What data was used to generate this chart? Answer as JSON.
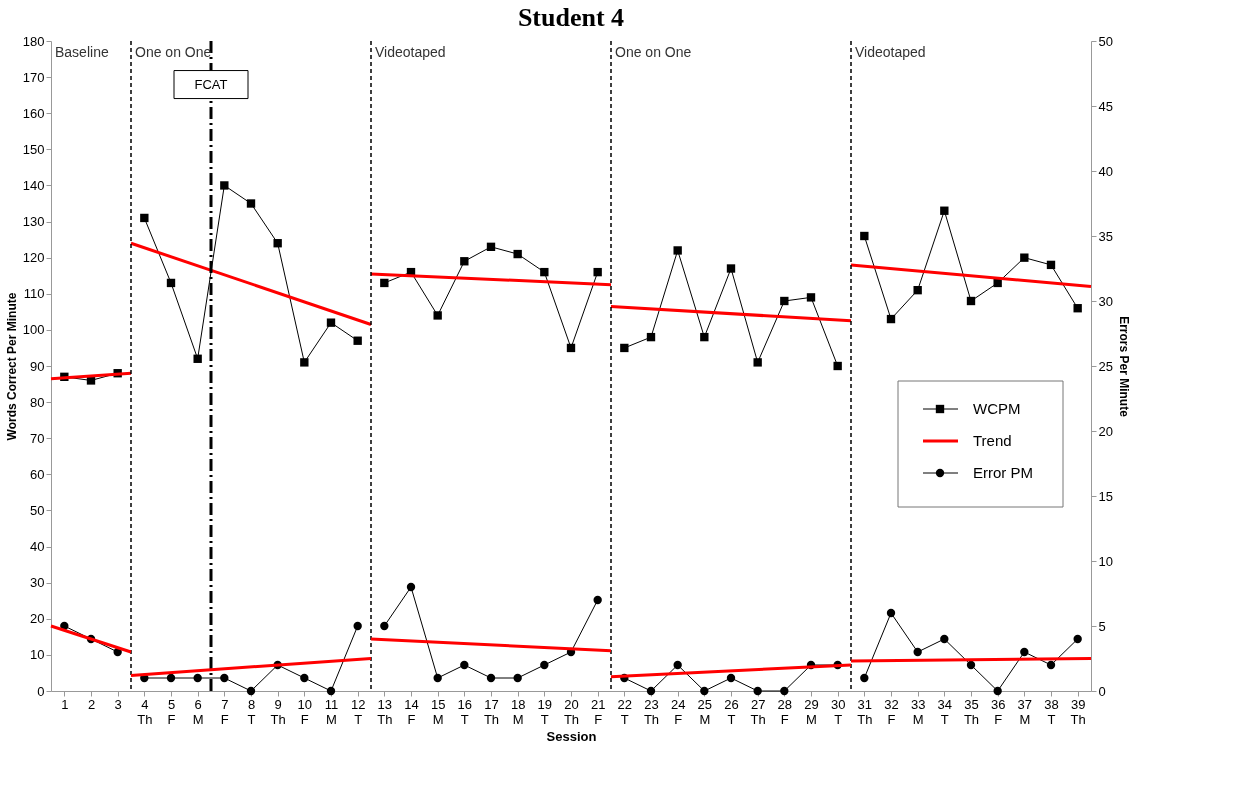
{
  "chart_data": {
    "type": "line",
    "title": "Student 4",
    "xlabel": "Session",
    "ylabel": "Words Correct Per Minute",
    "y2label": "Errors Per Minute",
    "xlim": [
      0.5,
      39.5
    ],
    "xticks": [
      1,
      2,
      3,
      {
        "value": 4,
        "label": "4\nTh"
      },
      {
        "value": 5,
        "label": "5\nF"
      },
      {
        "value": 6,
        "label": "6\nM"
      },
      {
        "value": 7,
        "label": "7\nF"
      },
      {
        "value": 8,
        "label": "8\nT"
      },
      {
        "value": 9,
        "label": "9\nTh"
      },
      {
        "value": 10,
        "label": "10\nF"
      },
      {
        "value": 11,
        "label": "11\nM"
      },
      {
        "value": 12,
        "label": "12\nT"
      },
      {
        "value": 13,
        "label": "13\nTh"
      },
      {
        "value": 14,
        "label": "14\nF"
      },
      {
        "value": 15,
        "label": "15\nM"
      },
      {
        "value": 16,
        "label": "16\nT"
      },
      {
        "value": 17,
        "label": "17\nTh"
      },
      {
        "value": 18,
        "label": "18\nM"
      },
      {
        "value": 19,
        "label": "19\nT"
      },
      {
        "value": 20,
        "label": "20\nTh"
      },
      {
        "value": 21,
        "label": "21\nF"
      },
      {
        "value": 22,
        "label": "22\nT"
      },
      {
        "value": 23,
        "label": "23\nTh"
      },
      {
        "value": 24,
        "label": "24\nF"
      },
      {
        "value": 25,
        "label": "25\nM"
      },
      {
        "value": 26,
        "label": "26\nT"
      },
      {
        "value": 27,
        "label": "27\nTh"
      },
      {
        "value": 28,
        "label": "28\nF"
      },
      {
        "value": 29,
        "label": "29\nM"
      },
      {
        "value": 30,
        "label": "30\nT"
      },
      {
        "value": 31,
        "label": "31\nTh"
      },
      {
        "value": 32,
        "label": "32\nF"
      },
      {
        "value": 33,
        "label": "33\nM"
      },
      {
        "value": 34,
        "label": "34\nT"
      },
      {
        "value": 35,
        "label": "35\nTh"
      },
      {
        "value": 36,
        "label": "36\nF"
      },
      {
        "value": 37,
        "label": "37\nM"
      },
      {
        "value": 38,
        "label": "38\nT"
      },
      {
        "value": 39,
        "label": "39\nTh"
      }
    ],
    "ylim": [
      0,
      180
    ],
    "yticks": [
      0,
      10,
      20,
      30,
      40,
      50,
      60,
      70,
      80,
      90,
      100,
      110,
      120,
      130,
      140,
      150,
      160,
      170,
      180
    ],
    "y2lim": [
      0,
      50
    ],
    "y2ticks": [
      0,
      5,
      10,
      15,
      20,
      25,
      30,
      35,
      40,
      45,
      50
    ],
    "grid": false,
    "legend": "right",
    "line_style": "solid",
    "series": [
      {
        "name": "WCPM",
        "color": "#000000",
        "marker": "square",
        "x": [
          1,
          2,
          3
        ],
        "values": [
          87,
          86,
          88
        ]
      },
      {
        "color": "#000000",
        "marker": "square",
        "x": [
          4,
          5,
          6,
          7,
          8,
          9,
          10,
          11,
          12
        ],
        "values": [
          131,
          113,
          92,
          140,
          135,
          124,
          91,
          102,
          97
        ]
      },
      {
        "color": "#000000",
        "marker": "square",
        "x": [
          13,
          14,
          15,
          16,
          17,
          18,
          19,
          20,
          21
        ],
        "values": [
          113,
          116,
          104,
          119,
          123,
          121,
          116,
          95,
          116
        ]
      },
      {
        "color": "#000000",
        "marker": "square",
        "x": [
          22,
          23,
          24,
          25,
          26,
          27,
          28,
          29,
          30
        ],
        "values": [
          95,
          98,
          122,
          98,
          117,
          91,
          108,
          109,
          90
        ]
      },
      {
        "color": "#000000",
        "marker": "square",
        "x": [
          31,
          32,
          33,
          34,
          35,
          36,
          37,
          38,
          39
        ],
        "values": [
          126,
          103,
          111,
          133,
          108,
          113,
          120,
          118,
          106
        ]
      },
      {
        "name": "Trend",
        "color": "#ff0000",
        "marker": "none",
        "x": [
          0.5,
          3.5
        ],
        "values": [
          86.5,
          88
        ]
      },
      {
        "color": "#ff0000",
        "marker": "none",
        "x": [
          3.5,
          12.5
        ],
        "values": [
          124,
          101.5
        ]
      },
      {
        "color": "#ff0000",
        "marker": "none",
        "x": [
          12.5,
          21.5
        ],
        "values": [
          115.5,
          112.5
        ]
      },
      {
        "color": "#ff0000",
        "marker": "none",
        "x": [
          21.5,
          30.5
        ],
        "values": [
          106.5,
          102.5
        ]
      },
      {
        "color": "#ff0000",
        "marker": "none",
        "x": [
          30.5,
          39.5
        ],
        "values": [
          118,
          112
        ]
      },
      {
        "name": "Error PM",
        "color": "#000000",
        "marker": "circle",
        "axis": "y2",
        "x": [
          1,
          2,
          3
        ],
        "values": [
          5,
          4,
          3
        ]
      },
      {
        "color": "#000000",
        "marker": "circle",
        "axis": "y2",
        "x": [
          4,
          5,
          6,
          7,
          8,
          9,
          10,
          11,
          12
        ],
        "values": [
          1,
          1,
          1,
          1,
          0,
          2,
          1,
          0,
          5
        ]
      },
      {
        "color": "#000000",
        "marker": "circle",
        "axis": "y2",
        "x": [
          13,
          14,
          15,
          16,
          17,
          18,
          19,
          20,
          21
        ],
        "values": [
          5,
          8,
          1,
          2,
          1,
          1,
          2,
          3,
          7
        ]
      },
      {
        "color": "#000000",
        "marker": "circle",
        "axis": "y2",
        "x": [
          22,
          23,
          24,
          25,
          26,
          27,
          28,
          29,
          30
        ],
        "values": [
          1,
          0,
          2,
          0,
          1,
          0,
          0,
          2,
          2
        ]
      },
      {
        "color": "#000000",
        "marker": "circle",
        "axis": "y2",
        "x": [
          31,
          32,
          33,
          34,
          35,
          36,
          37,
          38,
          39
        ],
        "values": [
          1,
          6,
          3,
          4,
          2,
          0,
          3,
          2,
          4
        ]
      },
      {
        "color": "#ff0000",
        "marker": "none",
        "axis": "y2",
        "x": [
          0.5,
          3.5
        ],
        "values": [
          5,
          3
        ]
      },
      {
        "color": "#ff0000",
        "marker": "none",
        "axis": "y2",
        "x": [
          3.5,
          12.5
        ],
        "values": [
          1.2,
          2.5
        ]
      },
      {
        "color": "#ff0000",
        "marker": "none",
        "axis": "y2",
        "x": [
          12.5,
          21.5
        ],
        "values": [
          4,
          3.1
        ]
      },
      {
        "color": "#ff0000",
        "marker": "none",
        "axis": "y2",
        "x": [
          21.5,
          30.5
        ],
        "values": [
          1.1,
          2
        ]
      },
      {
        "color": "#ff0000",
        "marker": "none",
        "axis": "y2",
        "x": [
          30.5,
          39.5
        ],
        "values": [
          2.3,
          2.5
        ]
      }
    ],
    "ref_lines": [
      {
        "axis": "x",
        "value": 3.5,
        "line_style": "dashed",
        "color": "#000000"
      },
      {
        "axis": "x",
        "value": 12.5,
        "line_style": "dashed",
        "color": "#000000"
      },
      {
        "axis": "x",
        "value": 21.5,
        "line_style": "dashed",
        "color": "#000000"
      },
      {
        "axis": "x",
        "value": 30.5,
        "line_style": "dashed",
        "color": "#000000"
      },
      {
        "axis": "x",
        "value": 6.5,
        "line_style": "dashdot",
        "color": "#000000",
        "label": "FCAT"
      }
    ],
    "annotations": [
      "Baseline",
      "One on One",
      "Videotaped",
      "One on One",
      "Videotaped"
    ]
  }
}
